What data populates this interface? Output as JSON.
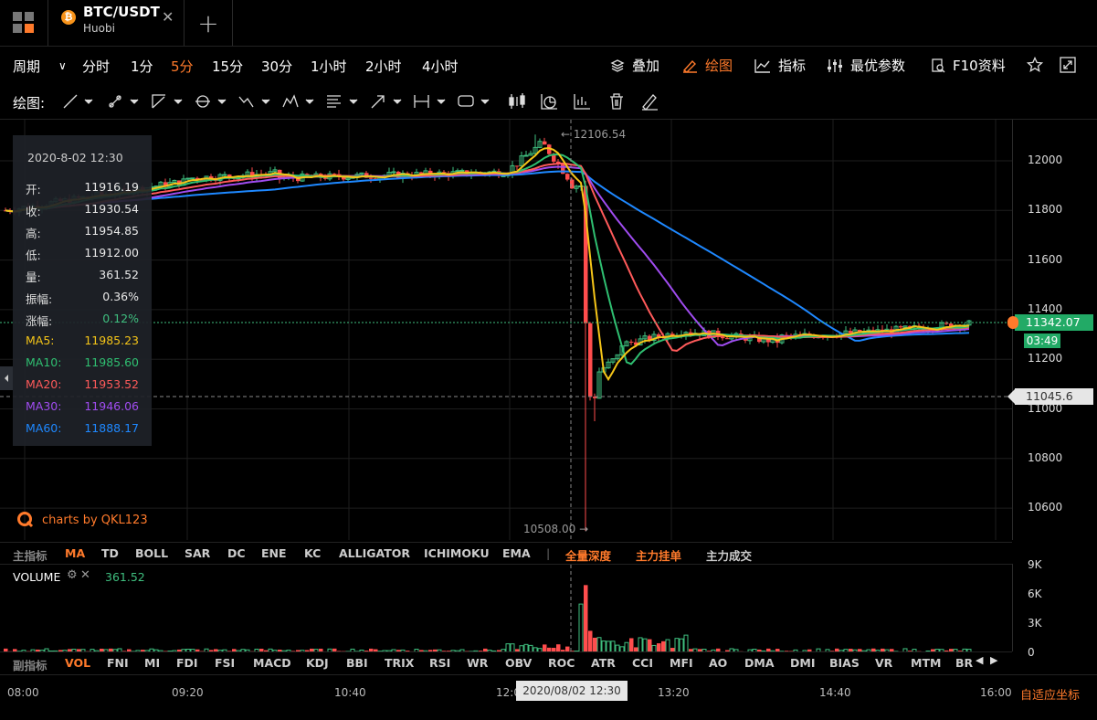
{
  "tab": {
    "title": "BTC/USDT",
    "exchange": "Huobi",
    "coin_symbol": "₿"
  },
  "period_bar": {
    "label": "周期",
    "items": [
      {
        "label": "分时",
        "active": false
      },
      {
        "label": "1分",
        "active": false
      },
      {
        "label": "5分",
        "active": true
      },
      {
        "label": "15分",
        "active": false
      },
      {
        "label": "30分",
        "active": false
      },
      {
        "label": "1小时",
        "active": false
      },
      {
        "label": "2小时",
        "active": false
      },
      {
        "label": "4小时",
        "active": false
      }
    ],
    "right": {
      "overlay": "叠加",
      "draw": "绘图",
      "indicator": "指标",
      "best_params": "最优参数",
      "f10": "F10资料"
    }
  },
  "draw_bar": {
    "label": "绘图:"
  },
  "info": {
    "datetime": "2020-8-02 12:30",
    "rows": [
      {
        "k": "开:",
        "v": "11916.19",
        "color": "#e8e8e8"
      },
      {
        "k": "收:",
        "v": "11930.54",
        "color": "#e8e8e8"
      },
      {
        "k": "高:",
        "v": "11954.85",
        "color": "#e8e8e8"
      },
      {
        "k": "低:",
        "v": "11912.00",
        "color": "#e8e8e8"
      },
      {
        "k": "量:",
        "v": "361.52",
        "color": "#e8e8e8"
      },
      {
        "k": "振幅:",
        "v": "0.36%",
        "color": "#e8e8e8"
      },
      {
        "k": "涨幅:",
        "v": "0.12%",
        "color": "#3fbf7f"
      },
      {
        "k": "MA5:",
        "v": "11985.23",
        "color": "#f5c518"
      },
      {
        "k": "MA10:",
        "v": "11985.60",
        "color": "#2fbf71"
      },
      {
        "k": "MA20:",
        "v": "11953.52",
        "color": "#ff5a5a"
      },
      {
        "k": "MA30:",
        "v": "11946.06",
        "color": "#a04cf0"
      },
      {
        "k": "MA60:",
        "v": "11888.17",
        "color": "#1e88ff"
      }
    ]
  },
  "chart": {
    "high_label": "← 12106.54",
    "low_label": "10508.00 →",
    "watermark": "charts by QKL123",
    "y_ticks": [
      "12000",
      "11800",
      "11600",
      "11400",
      "11200",
      "11000",
      "10800",
      "10600"
    ],
    "price_tag": "11342.07",
    "countdown": "03:49",
    "cross_price": "11045.6",
    "colors": {
      "up": "#3fbf7f",
      "down": "#ff4d4d",
      "ma5": "#f5c518",
      "ma10": "#2fbf71",
      "ma20": "#ff5a5a",
      "ma30": "#a04cf0",
      "ma60": "#1e88ff",
      "accent": "#ff7a2b"
    }
  },
  "indicators_main": {
    "label": "主指标",
    "items": [
      "MA",
      "TD",
      "BOLL",
      "SAR",
      "DC",
      "ENE",
      "KC",
      "ALLIGATOR",
      "ICHIMOKU",
      "EMA"
    ],
    "divider": "|",
    "extras": [
      "全量深度",
      "主力挂单",
      "主力成交"
    ]
  },
  "volume": {
    "label": "VOLUME",
    "value": "361.52",
    "y_ticks": [
      "9K",
      "6K",
      "3K",
      "0"
    ]
  },
  "indicators_sub": {
    "label": "副指标",
    "items": [
      "VOL",
      "FNI",
      "MI",
      "FDI",
      "FSI",
      "MACD",
      "KDJ",
      "BBI",
      "TRIX",
      "RSI",
      "WR",
      "OBV",
      "ROC",
      "ATR",
      "CCI",
      "MFI",
      "AO",
      "DMA",
      "DMI",
      "BIAS",
      "VR",
      "MTM",
      "BR"
    ]
  },
  "x_axis": {
    "labels": [
      "08:00",
      "09:20",
      "10:40",
      "12:00",
      "13:20",
      "14:40",
      "16:00"
    ],
    "cursor": "2020/08/02 12:30",
    "adaptive": "自适应坐标"
  }
}
